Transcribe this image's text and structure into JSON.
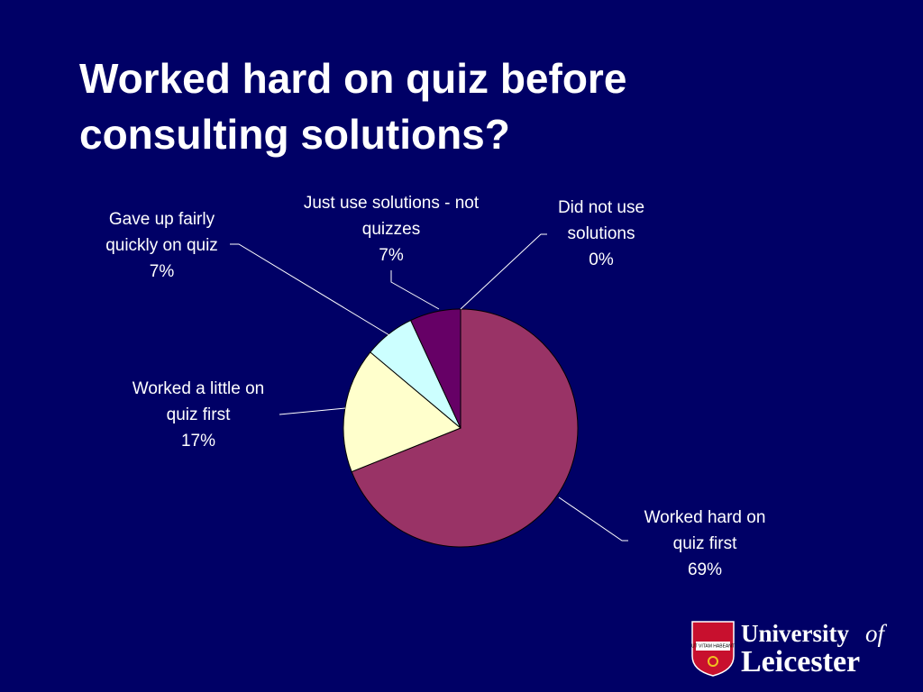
{
  "chart_data": {
    "type": "pie",
    "title": "Worked hard on quiz before consulting solutions?",
    "categories": [
      "Worked hard on quiz first",
      "Worked a little on quiz first",
      "Gave up fairly quickly on quiz",
      "Just use solutions - not quizzes",
      "Did not use solutions"
    ],
    "values": [
      69,
      17,
      7,
      7,
      0
    ],
    "value_labels": [
      "69%",
      "17%",
      "7%",
      "7%",
      "0%"
    ],
    "colors": [
      "#993366",
      "#ffffcc",
      "#ccffff",
      "#660066",
      "#3366cc"
    ]
  },
  "logo": {
    "name": "University",
    "of": "of",
    "place": "Leicester",
    "motto": "UT VITAM HABEANT"
  }
}
